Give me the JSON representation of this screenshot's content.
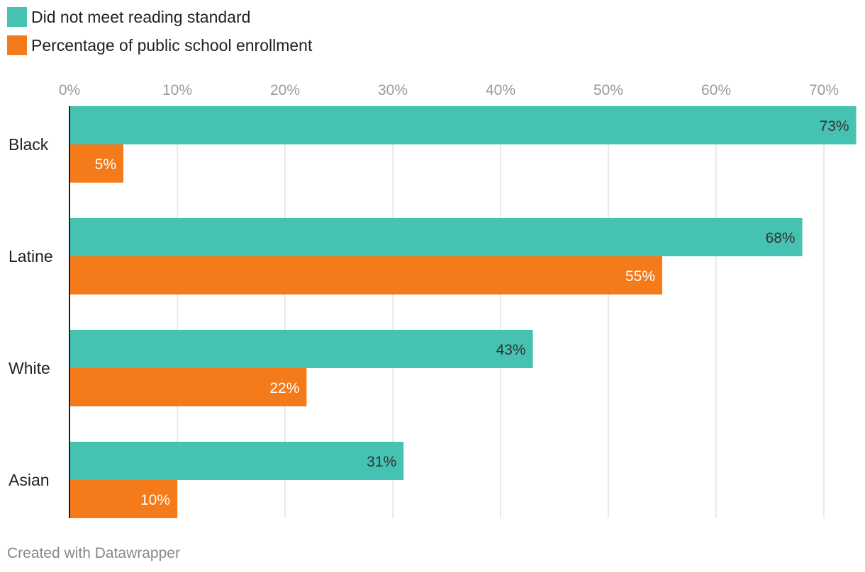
{
  "legend": [
    {
      "label": "Did not meet reading standard",
      "color": "#46c2b2"
    },
    {
      "label": "Percentage of public school enrollment",
      "color": "#f57a1a"
    }
  ],
  "chart_data": {
    "type": "bar",
    "orientation": "horizontal",
    "categories": [
      "Black",
      "Latine",
      "White",
      "Asian"
    ],
    "series": [
      {
        "name": "Did not meet reading standard",
        "values": [
          73,
          68,
          43,
          31
        ],
        "color": "#46c2b2",
        "label_color": "#333333"
      },
      {
        "name": "Percentage of public school enrollment",
        "values": [
          5,
          55,
          22,
          10
        ],
        "color": "#f57a1a",
        "label_color": "#ffffff"
      }
    ],
    "value_suffix": "%",
    "x_ticks": [
      0,
      10,
      20,
      30,
      40,
      50,
      60,
      70
    ],
    "xlim": [
      0,
      73
    ],
    "grid": true,
    "legend_position": "top-left"
  },
  "footer": "Created with Datawrapper"
}
